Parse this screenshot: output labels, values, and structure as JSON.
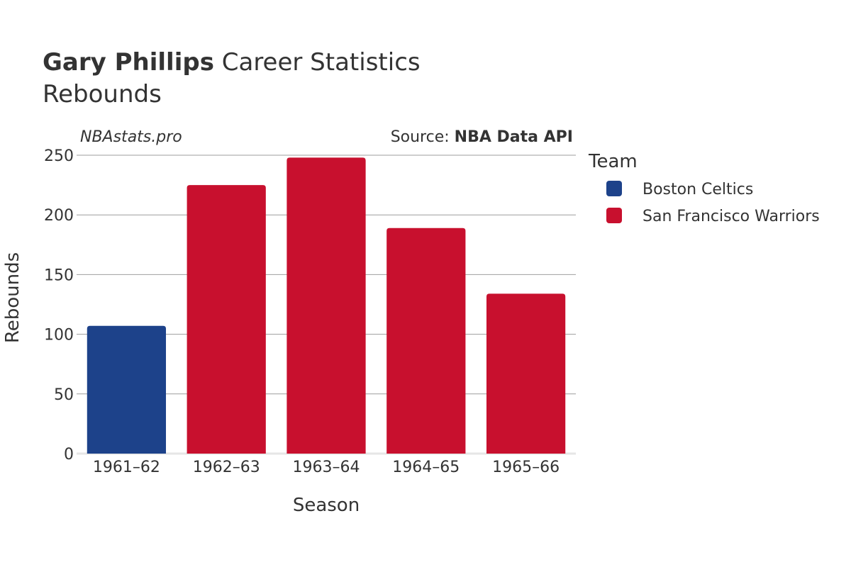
{
  "title": {
    "player": "Gary Phillips",
    "suffix": "Career Statistics",
    "subtitle": "Rebounds"
  },
  "watermark": "NBAstats.pro",
  "source": {
    "prefix": "Source: ",
    "name": "NBA Data API"
  },
  "colors": {
    "Boston Celtics": "#1d428a",
    "San Francisco Warriors": "#c8102e",
    "grid": "#9e9e9e",
    "text": "#333333"
  },
  "chart_data": {
    "type": "bar",
    "title": "Gary Phillips Career Statistics",
    "subtitle": "Rebounds",
    "xlabel": "Season",
    "ylabel": "Rebounds",
    "ylim": [
      0,
      250
    ],
    "yticks": [
      0,
      50,
      100,
      150,
      200,
      250
    ],
    "categories": [
      "1961–62",
      "1962–63",
      "1963–64",
      "1964–65",
      "1965–66"
    ],
    "values": [
      107,
      225,
      248,
      189,
      134
    ],
    "teams": [
      "Boston Celtics",
      "San Francisco Warriors",
      "San Francisco Warriors",
      "San Francisco Warriors",
      "San Francisco Warriors"
    ],
    "legend": {
      "title": "Team",
      "entries": [
        "Boston Celtics",
        "San Francisco Warriors"
      ],
      "position": "right"
    },
    "grid": true
  }
}
